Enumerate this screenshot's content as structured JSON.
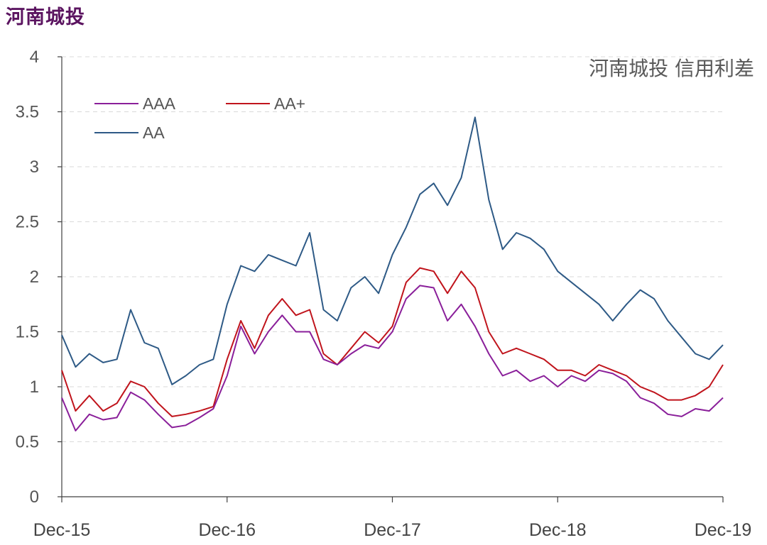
{
  "page_title": "河南城投",
  "colors": {
    "title": "#5b1460",
    "AAA": "#8a1f9a",
    "AA+": "#c0141c",
    "AA": "#2e5a86",
    "grid": "#d9d9d9",
    "axis": "#404040"
  },
  "chart_data": {
    "type": "line",
    "title": "河南城投 信用利差",
    "xlabel": "",
    "ylabel": "",
    "ylim": [
      0,
      4
    ],
    "yticks": [
      "0",
      "0.5",
      "1",
      "1.5",
      "2",
      "2.5",
      "3",
      "3.5",
      "4"
    ],
    "xticks": [
      "Dec-15",
      "Dec-16",
      "Dec-17",
      "Dec-18",
      "Dec-19"
    ],
    "grid": "horizontal dashed",
    "legend": "top-left",
    "x": [
      "Dec-15",
      "Jan-16",
      "Feb-16",
      "Mar-16",
      "Apr-16",
      "May-16",
      "Jun-16",
      "Jul-16",
      "Aug-16",
      "Sep-16",
      "Oct-16",
      "Nov-16",
      "Dec-16",
      "Jan-17",
      "Feb-17",
      "Mar-17",
      "Apr-17",
      "May-17",
      "Jun-17",
      "Jul-17",
      "Aug-17",
      "Sep-17",
      "Oct-17",
      "Nov-17",
      "Dec-17",
      "Jan-18",
      "Feb-18",
      "Mar-18",
      "Apr-18",
      "May-18",
      "Jun-18",
      "Jul-18",
      "Aug-18",
      "Sep-18",
      "Oct-18",
      "Nov-18",
      "Dec-18",
      "Jan-19",
      "Feb-19",
      "Mar-19",
      "Apr-19",
      "May-19",
      "Jun-19",
      "Jul-19",
      "Aug-19",
      "Sep-19",
      "Oct-19",
      "Nov-19",
      "Dec-19"
    ],
    "series": [
      {
        "name": "AAA",
        "values": [
          0.9,
          0.6,
          0.75,
          0.7,
          0.72,
          0.95,
          0.88,
          0.75,
          0.63,
          0.65,
          0.72,
          0.8,
          1.1,
          1.55,
          1.3,
          1.5,
          1.65,
          1.5,
          1.5,
          1.25,
          1.2,
          1.3,
          1.38,
          1.35,
          1.5,
          1.8,
          1.92,
          1.9,
          1.6,
          1.75,
          1.55,
          1.3,
          1.1,
          1.15,
          1.05,
          1.1,
          1.0,
          1.1,
          1.05,
          1.15,
          1.12,
          1.05,
          0.9,
          0.85,
          0.75,
          0.73,
          0.8,
          0.78,
          0.9
        ]
      },
      {
        "name": "AA+",
        "values": [
          1.15,
          0.78,
          0.92,
          0.78,
          0.85,
          1.05,
          1.0,
          0.85,
          0.73,
          0.75,
          0.78,
          0.82,
          1.25,
          1.6,
          1.35,
          1.65,
          1.8,
          1.65,
          1.7,
          1.3,
          1.2,
          1.35,
          1.5,
          1.4,
          1.55,
          1.95,
          2.08,
          2.05,
          1.85,
          2.05,
          1.9,
          1.5,
          1.3,
          1.35,
          1.3,
          1.25,
          1.15,
          1.15,
          1.1,
          1.2,
          1.15,
          1.1,
          1.0,
          0.95,
          0.88,
          0.88,
          0.92,
          1.0,
          1.2
        ]
      },
      {
        "name": "AA",
        "values": [
          1.47,
          1.18,
          1.3,
          1.22,
          1.25,
          1.7,
          1.4,
          1.35,
          1.02,
          1.1,
          1.2,
          1.25,
          1.75,
          2.1,
          2.05,
          2.2,
          2.15,
          2.1,
          2.4,
          1.7,
          1.6,
          1.9,
          2.0,
          1.85,
          2.2,
          2.45,
          2.75,
          2.85,
          2.65,
          2.9,
          3.45,
          2.7,
          2.25,
          2.4,
          2.35,
          2.25,
          2.05,
          1.95,
          1.85,
          1.75,
          1.6,
          1.75,
          1.88,
          1.8,
          1.6,
          1.45,
          1.3,
          1.25,
          1.38
        ]
      }
    ]
  }
}
